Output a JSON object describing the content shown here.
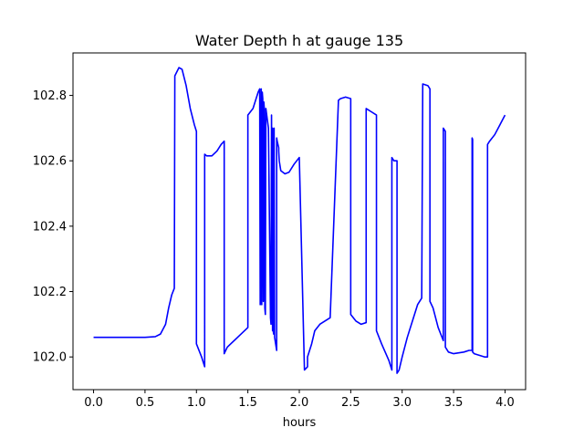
{
  "chart_data": {
    "type": "line",
    "title": "Water Depth h at gauge 135",
    "xlabel": "hours",
    "ylabel": "",
    "xlim": [
      -0.2,
      4.2
    ],
    "ylim": [
      101.9,
      102.93
    ],
    "xticks": [
      0.0,
      0.5,
      1.0,
      1.5,
      2.0,
      2.5,
      3.0,
      3.5,
      4.0
    ],
    "xtick_labels": [
      "0.0",
      "0.5",
      "1.0",
      "1.5",
      "2.0",
      "2.5",
      "3.0",
      "3.5",
      "4.0"
    ],
    "yticks": [
      102.0,
      102.2,
      102.4,
      102.6,
      102.8
    ],
    "ytick_labels": [
      "102.0",
      "102.2",
      "102.4",
      "102.6",
      "102.8"
    ],
    "grid": false,
    "line_color": "#0000ff",
    "series": [
      {
        "x": [
          0.0,
          0.5,
          0.6,
          0.65,
          0.7,
          0.73,
          0.76,
          0.785,
          0.79,
          0.79,
          0.83,
          0.86,
          0.9,
          0.94,
          0.98,
          1.0,
          1.0,
          1.05,
          1.08,
          1.08,
          1.1,
          1.15,
          1.2,
          1.24,
          1.27,
          1.27,
          1.3,
          1.4,
          1.5,
          1.5,
          1.55,
          1.6,
          1.615,
          1.62,
          1.625,
          1.63,
          1.635,
          1.64,
          1.645,
          1.65,
          1.655,
          1.66,
          1.665,
          1.67,
          1.675,
          1.7,
          1.72,
          1.725,
          1.73,
          1.74,
          1.74,
          1.745,
          1.75,
          1.755,
          1.76,
          1.77,
          1.78,
          1.78,
          1.785,
          1.8,
          1.8,
          1.805,
          1.82,
          1.86,
          1.9,
          1.95,
          2.0,
          2.05,
          2.08,
          2.08,
          2.12,
          2.15,
          2.2,
          2.3,
          2.38,
          2.38,
          2.4,
          2.45,
          2.5,
          2.5,
          2.55,
          2.6,
          2.65,
          2.65,
          2.7,
          2.75,
          2.75,
          2.8,
          2.87,
          2.9,
          2.9,
          2.92,
          2.95,
          2.95,
          2.97,
          3.0,
          3.05,
          3.1,
          3.15,
          3.19,
          3.2,
          3.2,
          3.25,
          3.27,
          3.27,
          3.3,
          3.35,
          3.4,
          3.4,
          3.42,
          3.42,
          3.45,
          3.5,
          3.6,
          3.65,
          3.68,
          3.68,
          3.685,
          3.685,
          3.7,
          3.75,
          3.8,
          3.83,
          3.83,
          3.85,
          3.9,
          3.95,
          4.0
        ],
        "y": [
          102.06,
          102.06,
          102.062,
          102.07,
          102.1,
          102.15,
          102.19,
          102.21,
          102.86,
          102.86,
          102.885,
          102.88,
          102.83,
          102.76,
          102.71,
          102.69,
          102.04,
          102.0,
          101.97,
          102.62,
          102.615,
          102.615,
          102.63,
          102.65,
          102.66,
          102.01,
          102.03,
          102.06,
          102.09,
          102.74,
          102.76,
          102.81,
          102.82,
          102.16,
          102.17,
          102.82,
          102.16,
          102.81,
          102.79,
          102.17,
          102.78,
          102.76,
          102.15,
          102.13,
          102.76,
          102.7,
          102.12,
          102.1,
          102.74,
          102.08,
          102.7,
          102.09,
          102.07,
          102.7,
          102.06,
          102.04,
          102.02,
          102.67,
          102.66,
          102.64,
          102.63,
          102.6,
          102.57,
          102.56,
          102.565,
          102.59,
          102.61,
          101.96,
          101.97,
          102.0,
          102.04,
          102.08,
          102.1,
          102.12,
          102.78,
          102.785,
          102.79,
          102.795,
          102.79,
          102.13,
          102.11,
          102.1,
          102.105,
          102.76,
          102.75,
          102.74,
          102.08,
          102.04,
          101.99,
          101.96,
          102.61,
          102.6,
          102.6,
          101.95,
          101.96,
          102.0,
          102.06,
          102.11,
          102.16,
          102.18,
          102.835,
          102.835,
          102.83,
          102.82,
          102.17,
          102.15,
          102.09,
          102.05,
          102.7,
          102.69,
          102.03,
          102.015,
          102.01,
          102.015,
          102.02,
          102.02,
          102.67,
          102.665,
          102.015,
          102.01,
          102.005,
          102.0,
          102.0,
          102.65,
          102.66,
          102.68,
          102.71,
          102.74
        ]
      }
    ]
  }
}
